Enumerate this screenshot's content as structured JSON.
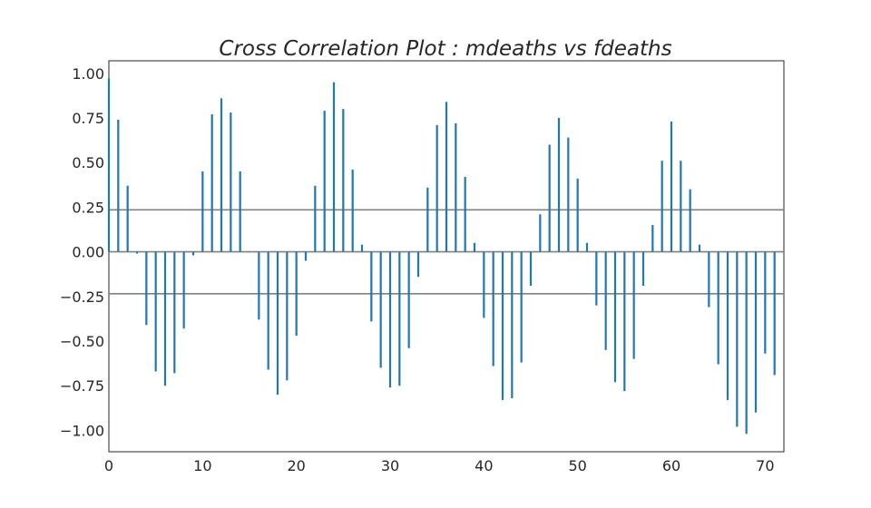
{
  "chart_data": {
    "type": "bar",
    "title": "Cross Correlation Plot :  mdeaths vs fdeaths",
    "xlabel": "",
    "ylabel": "",
    "xlim": [
      0,
      72
    ],
    "ylim": [
      -1.12,
      1.07
    ],
    "x_ticks": [
      0,
      10,
      20,
      30,
      40,
      50,
      60,
      70
    ],
    "y_ticks": [
      1.0,
      0.75,
      0.5,
      0.25,
      0.0,
      -0.25,
      -0.5,
      -0.75,
      -1.0
    ],
    "y_tick_labels": [
      "1.00",
      "0.75",
      "0.50",
      "0.25",
      "0.00",
      "−0.25",
      "−0.50",
      "−0.75",
      "−1.00"
    ],
    "x_tick_labels": [
      "0",
      "10",
      "20",
      "30",
      "40",
      "50",
      "60",
      "70"
    ],
    "reference_lines": [
      0.235,
      0.0,
      -0.235
    ],
    "grid": false,
    "bar_color": "#1f77b4",
    "line_color": "#808080",
    "x": [
      0,
      1,
      2,
      3,
      4,
      5,
      6,
      7,
      8,
      9,
      10,
      11,
      12,
      13,
      14,
      15,
      16,
      17,
      18,
      19,
      20,
      21,
      22,
      23,
      24,
      25,
      26,
      27,
      28,
      29,
      30,
      31,
      32,
      33,
      34,
      35,
      36,
      37,
      38,
      39,
      40,
      41,
      42,
      43,
      44,
      45,
      46,
      47,
      48,
      49,
      50,
      51,
      52,
      53,
      54,
      55,
      56,
      57,
      58,
      59,
      60,
      61,
      62,
      63,
      64,
      65,
      66,
      67,
      68,
      69,
      70,
      71
    ],
    "values": [
      0.97,
      0.74,
      0.37,
      -0.01,
      -0.41,
      -0.67,
      -0.75,
      -0.68,
      -0.43,
      -0.02,
      0.45,
      0.77,
      0.86,
      0.78,
      0.45,
      0.0,
      -0.38,
      -0.66,
      -0.8,
      -0.72,
      -0.47,
      -0.05,
      0.37,
      0.79,
      0.95,
      0.8,
      0.46,
      0.04,
      -0.39,
      -0.65,
      -0.76,
      -0.75,
      -0.54,
      -0.14,
      0.36,
      0.71,
      0.84,
      0.72,
      0.42,
      0.05,
      -0.37,
      -0.64,
      -0.83,
      -0.82,
      -0.62,
      -0.19,
      0.21,
      0.6,
      0.75,
      0.64,
      0.41,
      0.05,
      -0.3,
      -0.55,
      -0.73,
      -0.78,
      -0.6,
      -0.19,
      0.15,
      0.51,
      0.73,
      0.51,
      0.35,
      0.04,
      -0.31,
      -0.63,
      -0.83,
      -0.98,
      -1.02,
      -0.9,
      -0.57,
      -0.69
    ]
  }
}
